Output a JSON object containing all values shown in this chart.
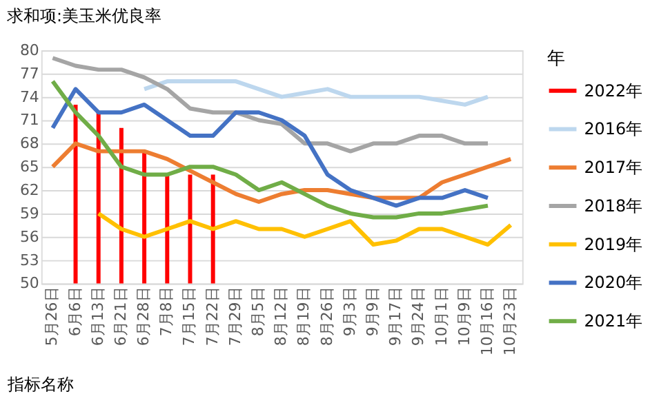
{
  "chart_data": {
    "type": "line",
    "title": "求和项:美玉米优良率",
    "xlabel": "指标名称",
    "legend_title": "年",
    "categories": [
      "5月26日",
      "6月6日",
      "6月13日",
      "6月21日",
      "6月28日",
      "7月8日",
      "7月15日",
      "7月22日",
      "7月29日",
      "8月5日",
      "8月12日",
      "8月19日",
      "8月26日",
      "9月3日",
      "9月9日",
      "9月17日",
      "9月24日",
      "10月1日",
      "10月9日",
      "10月16日",
      "10月23日"
    ],
    "ylim": [
      50,
      80
    ],
    "yticks": [
      50,
      53,
      56,
      59,
      62,
      65,
      68,
      71,
      74,
      77,
      80
    ],
    "grid": "y",
    "legend": "right",
    "marker": "none",
    "line_style": "solid",
    "series": [
      {
        "name": "2022年",
        "type": "bar",
        "color": "#ff0000",
        "values": [
          null,
          73,
          72,
          70,
          67,
          64,
          64,
          64,
          null,
          null,
          null,
          null,
          null,
          null,
          null,
          null,
          null,
          null,
          null,
          null,
          null
        ]
      },
      {
        "name": "2016年",
        "color": "#bdd7ee",
        "values": [
          null,
          null,
          null,
          null,
          75,
          76,
          76,
          76,
          76,
          75,
          74,
          74.5,
          75,
          74,
          74,
          74,
          74,
          73.5,
          73,
          74,
          null
        ]
      },
      {
        "name": "2017年",
        "color": "#ed7d31",
        "values": [
          65,
          68,
          67,
          67,
          67,
          66,
          64.5,
          63,
          61.5,
          60.5,
          61.5,
          62,
          62,
          61.5,
          61,
          61,
          61,
          63,
          64,
          65,
          66
        ]
      },
      {
        "name": "2018年",
        "color": "#a5a5a5",
        "values": [
          79,
          78,
          77.5,
          77.5,
          76.5,
          75,
          72.5,
          72,
          72,
          71,
          70.5,
          68,
          68,
          67,
          68,
          68,
          69,
          69,
          68,
          68,
          null
        ]
      },
      {
        "name": "2019年",
        "color": "#ffc000",
        "values": [
          null,
          null,
          59,
          57,
          56,
          57,
          58,
          57,
          58,
          57,
          57,
          56,
          57,
          58,
          55,
          55.5,
          57,
          57,
          56,
          55,
          57.5
        ]
      },
      {
        "name": "2020年",
        "color": "#4472c4",
        "values": [
          70,
          75,
          72,
          72,
          73,
          71,
          69,
          69,
          72,
          72,
          71,
          69,
          64,
          62,
          61,
          60,
          61,
          61,
          62,
          61,
          null
        ]
      },
      {
        "name": "2021年",
        "color": "#70ad47",
        "values": [
          76,
          72,
          69,
          65,
          64,
          64,
          65,
          65,
          64,
          62,
          63,
          61.5,
          60,
          59,
          58.5,
          58.5,
          59,
          59,
          59.5,
          60,
          null
        ]
      }
    ]
  }
}
